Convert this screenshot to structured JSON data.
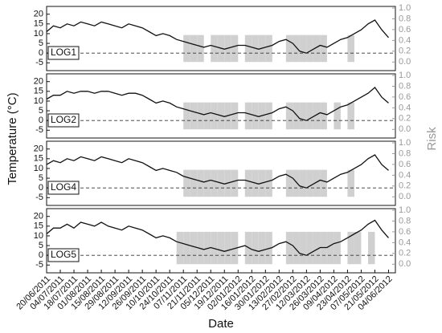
{
  "chart_data": [
    {
      "type": "line",
      "label": "LOG1",
      "ylabel": "Temperature (°C)",
      "y2label": "Risk",
      "x": [
        "20/06/2011",
        "27/06/2011",
        "04/07/2011",
        "11/07/2011",
        "18/07/2011",
        "25/07/2011",
        "01/08/2011",
        "08/08/2011",
        "15/08/2011",
        "22/08/2011",
        "29/08/2011",
        "05/09/2011",
        "12/09/2011",
        "19/09/2011",
        "26/09/2011",
        "03/10/2011",
        "10/10/2011",
        "17/10/2011",
        "24/10/2011",
        "31/10/2011",
        "07/11/2011",
        "14/11/2011",
        "21/11/2011",
        "28/11/2011",
        "05/12/2011",
        "12/12/2011",
        "19/12/2011",
        "26/12/2011",
        "02/01/2012",
        "09/01/2012",
        "16/01/2012",
        "23/01/2012",
        "30/01/2012",
        "06/02/2012",
        "13/02/2012",
        "20/02/2012",
        "27/02/2012",
        "05/03/2012",
        "12/03/2012",
        "19/03/2012",
        "26/03/2012",
        "02/04/2012",
        "09/04/2012",
        "16/04/2012",
        "23/04/2012",
        "30/04/2012",
        "07/05/2012",
        "14/05/2012",
        "21/05/2012",
        "28/05/2012",
        "04/06/2012"
      ],
      "xlim": [
        "20/06/2011",
        "11/06/2012"
      ],
      "series": [
        {
          "type": "bar",
          "axis": "y2",
          "color": "#d0d0d0",
          "values": [
            0,
            0,
            0,
            0,
            0,
            0,
            0,
            0,
            0,
            0,
            0,
            0,
            0,
            0,
            0,
            0,
            0,
            0,
            0,
            0,
            0.5,
            0.5,
            0.5,
            0,
            0.5,
            0.5,
            0.5,
            0.5,
            0,
            0.5,
            0.5,
            0.5,
            0.5,
            0,
            0,
            0.5,
            0.5,
            0.5,
            0.5,
            0.5,
            0.5,
            0,
            0,
            0,
            0.5,
            0,
            0,
            0,
            0,
            0,
            0
          ]
        },
        {
          "type": "line",
          "color": "#111111",
          "values": [
            11,
            14,
            13,
            15,
            14,
            16,
            15,
            14,
            16,
            15,
            14,
            13,
            15,
            14,
            13,
            11,
            9,
            10,
            9,
            7,
            6,
            5,
            4,
            3,
            4,
            3,
            2,
            3,
            4,
            4,
            3,
            2,
            3,
            4,
            6,
            7,
            5,
            1,
            0,
            2,
            4,
            3,
            5,
            7,
            8,
            10,
            12,
            15,
            17,
            12,
            8
          ]
        }
      ],
      "ylim": [
        -9,
        24
      ],
      "yticks": [
        -5,
        0,
        5,
        10,
        15,
        20
      ],
      "y2lim": [
        -0.16,
        1.03
      ],
      "y2ticks": [
        {
          "value": 0,
          "label": "0.0"
        },
        0.2,
        0.4,
        0.6,
        0.8,
        {
          "value": 1,
          "label": "1.0"
        }
      ],
      "hline": 0
    },
    {
      "type": "line",
      "label": "LOG2",
      "x": [
        "20/06/2011",
        "27/06/2011",
        "04/07/2011",
        "11/07/2011",
        "18/07/2011",
        "25/07/2011",
        "01/08/2011",
        "08/08/2011",
        "15/08/2011",
        "22/08/2011",
        "29/08/2011",
        "05/09/2011",
        "12/09/2011",
        "19/09/2011",
        "26/09/2011",
        "03/10/2011",
        "10/10/2011",
        "17/10/2011",
        "24/10/2011",
        "31/10/2011",
        "07/11/2011",
        "14/11/2011",
        "21/11/2011",
        "28/11/2011",
        "05/12/2011",
        "12/12/2011",
        "19/12/2011",
        "26/12/2011",
        "02/01/2012",
        "09/01/2012",
        "16/01/2012",
        "23/01/2012",
        "30/01/2012",
        "06/02/2012",
        "13/02/2012",
        "20/02/2012",
        "27/02/2012",
        "05/03/2012",
        "12/03/2012",
        "19/03/2012",
        "26/03/2012",
        "02/04/2012",
        "09/04/2012",
        "16/04/2012",
        "23/04/2012",
        "30/04/2012",
        "07/05/2012",
        "14/05/2012",
        "21/05/2012",
        "28/05/2012",
        "04/06/2012"
      ],
      "xlim": [
        "20/06/2011",
        "11/06/2012"
      ],
      "series": [
        {
          "type": "bar",
          "axis": "y2",
          "color": "#d0d0d0",
          "values": [
            0,
            0,
            0,
            0,
            0,
            0,
            0,
            0,
            0,
            0,
            0,
            0,
            0,
            0,
            0,
            0,
            0,
            0,
            0,
            0,
            0.5,
            0.5,
            0.5,
            0.5,
            0.5,
            0.5,
            0.5,
            0.5,
            0,
            0.5,
            0.5,
            0.5,
            0.5,
            0,
            0,
            0.5,
            0.5,
            0.5,
            0.5,
            0.5,
            0.5,
            0,
            0.5,
            0,
            0.5,
            0,
            0,
            0,
            0,
            0,
            0
          ]
        },
        {
          "type": "line",
          "color": "#111111",
          "values": [
            11,
            13,
            13,
            15,
            14,
            15,
            15,
            14,
            15,
            15,
            14,
            13,
            14,
            14,
            13,
            11,
            9,
            10,
            9,
            7,
            6,
            5,
            4,
            3,
            4,
            3,
            2,
            3,
            4,
            4,
            3,
            2,
            3,
            4,
            6,
            7,
            5,
            1,
            0,
            2,
            4,
            3,
            5,
            7,
            8,
            10,
            12,
            14,
            17,
            12,
            9
          ]
        }
      ],
      "ylim": [
        -9,
        24
      ],
      "yticks": [
        -5,
        0,
        5,
        10,
        15,
        20
      ],
      "y2lim": [
        -0.16,
        1.03
      ],
      "y2ticks": [
        {
          "value": 0,
          "label": "0.0"
        },
        0.2,
        0.4,
        0.6,
        0.8,
        {
          "value": 1,
          "label": "1.0"
        }
      ],
      "hline": 0
    },
    {
      "type": "line",
      "label": "LOG4",
      "x": [
        "20/06/2011",
        "27/06/2011",
        "04/07/2011",
        "11/07/2011",
        "18/07/2011",
        "25/07/2011",
        "01/08/2011",
        "08/08/2011",
        "15/08/2011",
        "22/08/2011",
        "29/08/2011",
        "05/09/2011",
        "12/09/2011",
        "19/09/2011",
        "26/09/2011",
        "03/10/2011",
        "10/10/2011",
        "17/10/2011",
        "24/10/2011",
        "31/10/2011",
        "07/11/2011",
        "14/11/2011",
        "21/11/2011",
        "28/11/2011",
        "05/12/2011",
        "12/12/2011",
        "19/12/2011",
        "26/12/2011",
        "02/01/2012",
        "09/01/2012",
        "16/01/2012",
        "23/01/2012",
        "30/01/2012",
        "06/02/2012",
        "13/02/2012",
        "20/02/2012",
        "27/02/2012",
        "05/03/2012",
        "12/03/2012",
        "19/03/2012",
        "26/03/2012",
        "02/04/2012",
        "09/04/2012",
        "16/04/2012",
        "23/04/2012",
        "30/04/2012",
        "07/05/2012",
        "14/05/2012",
        "21/05/2012",
        "28/05/2012",
        "04/06/2012"
      ],
      "xlim": [
        "20/06/2011",
        "11/06/2012"
      ],
      "series": [
        {
          "type": "bar",
          "axis": "y2",
          "color": "#d0d0d0",
          "values": [
            0,
            0,
            0,
            0,
            0,
            0,
            0,
            0,
            0,
            0,
            0,
            0,
            0,
            0,
            0,
            0,
            0,
            0,
            0,
            0,
            0.5,
            0.5,
            0.5,
            0.5,
            0.5,
            0.5,
            0.5,
            0.5,
            0,
            0.5,
            0.5,
            0.5,
            0.5,
            0,
            0,
            0.5,
            0.5,
            0.5,
            0.5,
            0.5,
            0.5,
            0,
            0,
            0,
            0.5,
            0,
            0,
            0,
            0,
            0,
            0
          ]
        },
        {
          "type": "line",
          "color": "#111111",
          "values": [
            12,
            14,
            13,
            15,
            14,
            16,
            15,
            14,
            16,
            15,
            14,
            13,
            15,
            14,
            13,
            11,
            9,
            10,
            9,
            8,
            6,
            5,
            4,
            3,
            4,
            3,
            2,
            3,
            4,
            4,
            3,
            2,
            3,
            4,
            6,
            7,
            5,
            1,
            0,
            2,
            4,
            3,
            5,
            7,
            8,
            10,
            12,
            15,
            17,
            12,
            9
          ]
        }
      ],
      "ylim": [
        -9,
        24
      ],
      "yticks": [
        -5,
        0,
        5,
        10,
        15,
        20
      ],
      "y2lim": [
        -0.16,
        1.03
      ],
      "y2ticks": [
        {
          "value": 0,
          "label": "0.0"
        },
        0.2,
        0.4,
        0.6,
        0.8,
        {
          "value": 1,
          "label": "1.0"
        }
      ],
      "hline": 0
    },
    {
      "type": "line",
      "label": "LOG5",
      "xlabel": "Date",
      "x": [
        "20/06/2011",
        "27/06/2011",
        "04/07/2011",
        "11/07/2011",
        "18/07/2011",
        "25/07/2011",
        "01/08/2011",
        "08/08/2011",
        "15/08/2011",
        "22/08/2011",
        "29/08/2011",
        "05/09/2011",
        "12/09/2011",
        "19/09/2011",
        "26/09/2011",
        "03/10/2011",
        "10/10/2011",
        "17/10/2011",
        "24/10/2011",
        "31/10/2011",
        "07/11/2011",
        "14/11/2011",
        "21/11/2011",
        "28/11/2011",
        "05/12/2011",
        "12/12/2011",
        "19/12/2011",
        "26/12/2011",
        "02/01/2012",
        "09/01/2012",
        "16/01/2012",
        "23/01/2012",
        "30/01/2012",
        "06/02/2012",
        "13/02/2012",
        "20/02/2012",
        "27/02/2012",
        "05/03/2012",
        "12/03/2012",
        "19/03/2012",
        "26/03/2012",
        "02/04/2012",
        "09/04/2012",
        "16/04/2012",
        "23/04/2012",
        "30/04/2012",
        "07/05/2012",
        "14/05/2012",
        "21/05/2012",
        "28/05/2012",
        "04/06/2012"
      ],
      "xlim": [
        "20/06/2011",
        "11/06/2012"
      ],
      "xticks": [
        "20/06/2011",
        "04/07/2011",
        "18/07/2011",
        "01/08/2011",
        "15/08/2011",
        "29/08/2011",
        "12/09/2011",
        "26/09/2011",
        "10/10/2011",
        "24/10/2011",
        "07/11/2011",
        "21/11/2011",
        "05/12/2011",
        "19/12/2011",
        "02/01/2012",
        "16/01/2012",
        "30/01/2012",
        "13/02/2012",
        "27/02/2012",
        "12/03/2012",
        "26/03/2012",
        "09/04/2012",
        "23/04/2012",
        "07/05/2012",
        "21/05/2012",
        "04/06/2012"
      ],
      "series": [
        {
          "type": "bar",
          "axis": "y2",
          "color": "#d0d0d0",
          "values": [
            0,
            0,
            0,
            0,
            0,
            0,
            0,
            0,
            0,
            0,
            0,
            0,
            0,
            0,
            0,
            0,
            0,
            0,
            0,
            0.6,
            0.6,
            0.6,
            0.6,
            0.6,
            0.6,
            0.6,
            0.6,
            0.6,
            0,
            0.6,
            0.6,
            0.6,
            0.6,
            0,
            0,
            0.6,
            0.6,
            0.6,
            0.6,
            0.6,
            0.6,
            0.6,
            0.6,
            0,
            0.6,
            0.6,
            0,
            0.6,
            0,
            0,
            0
          ]
        },
        {
          "type": "line",
          "color": "#111111",
          "values": [
            11,
            14,
            14,
            16,
            14,
            17,
            16,
            15,
            17,
            15,
            14,
            13,
            15,
            14,
            13,
            11,
            9,
            10,
            9,
            7,
            6,
            5,
            4,
            3,
            4,
            3,
            2,
            3,
            4,
            5,
            3,
            2,
            3,
            4,
            6,
            7,
            5,
            1,
            0,
            2,
            4,
            4,
            6,
            7,
            9,
            11,
            13,
            16,
            18,
            13,
            9
          ]
        }
      ],
      "ylim": [
        -9,
        24
      ],
      "yticks": [
        -5,
        0,
        5,
        10,
        15,
        20
      ],
      "y2lim": [
        -0.16,
        1.03
      ],
      "y2ticks": [
        {
          "value": 0,
          "label": "0.0"
        },
        0.2,
        0.4,
        0.6,
        0.8,
        {
          "value": 1,
          "label": "1.0"
        }
      ],
      "hline": 0
    }
  ]
}
